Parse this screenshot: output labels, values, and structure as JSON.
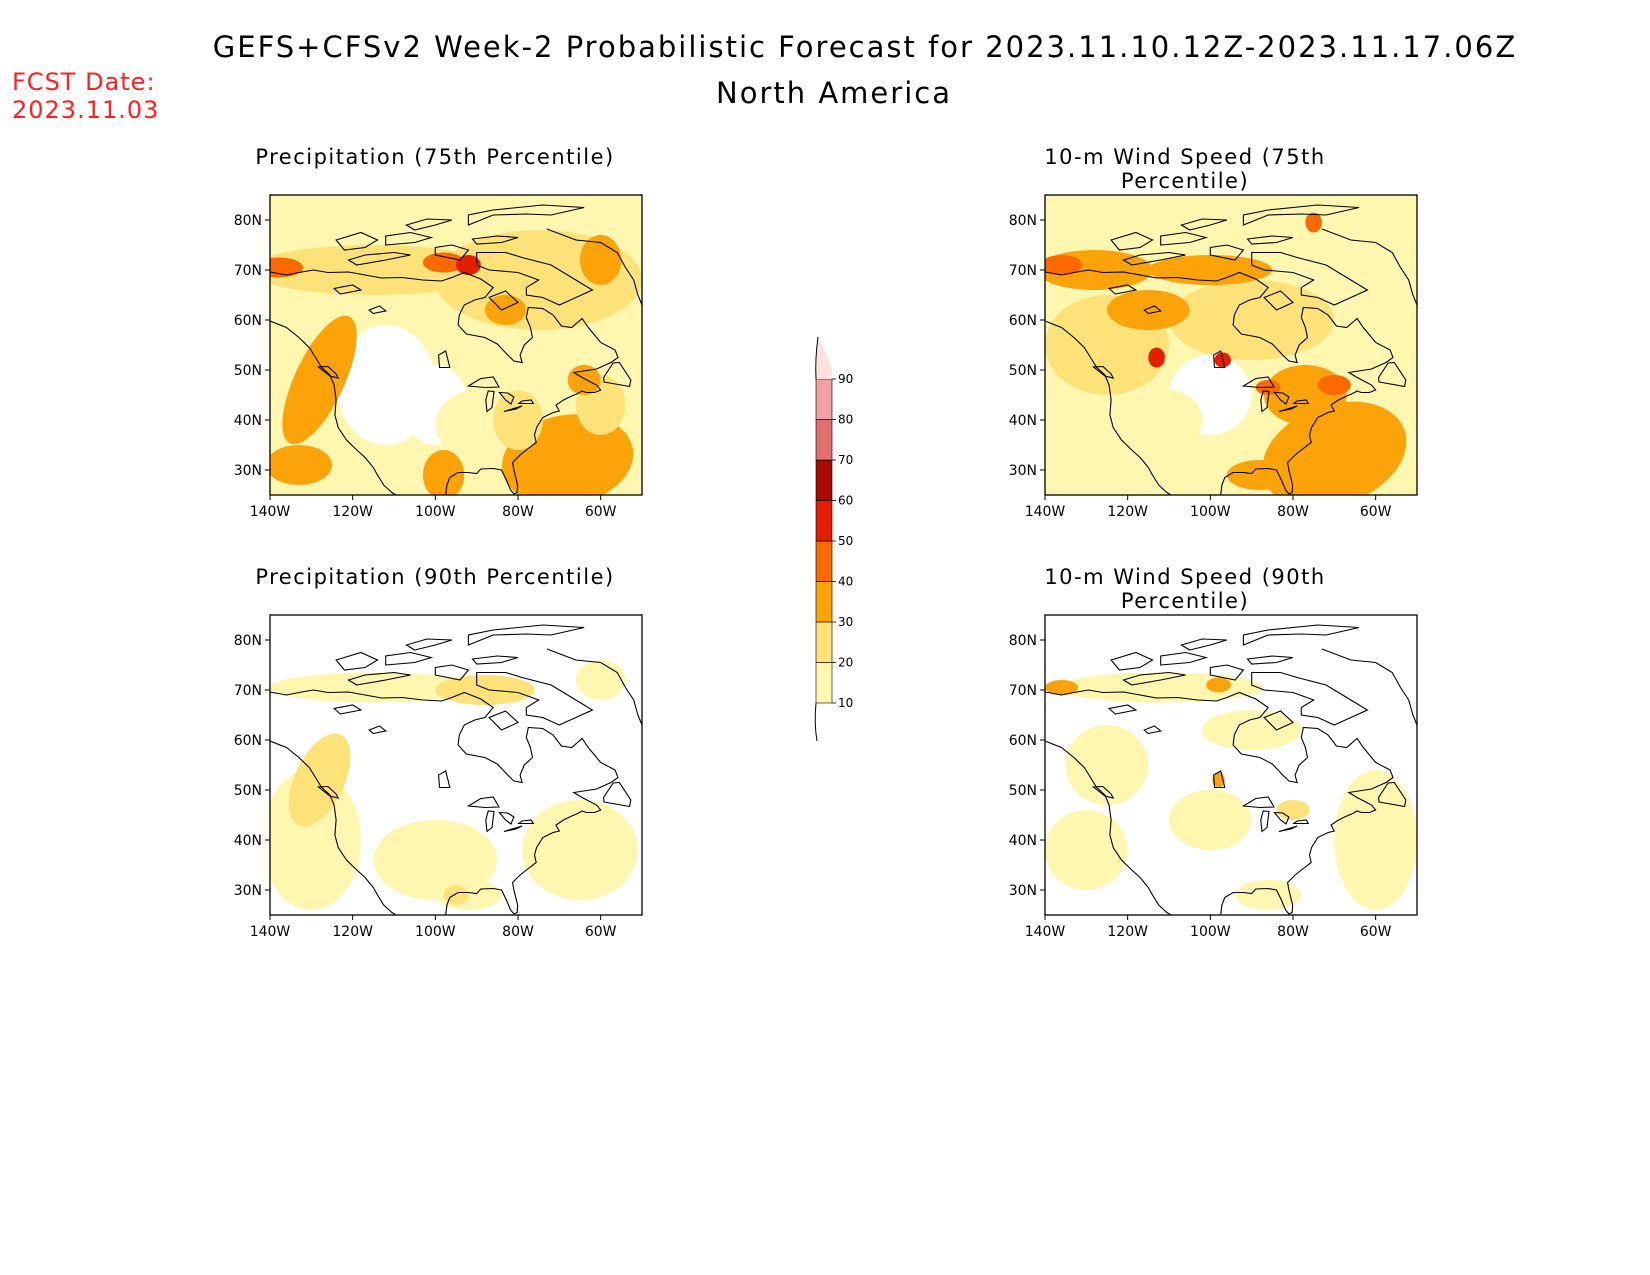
{
  "header": {
    "title": "GEFS+CFSv2 Week-2 Probabilistic Forecast for 2023.11.10.12Z-2023.11.17.06Z",
    "subtitle": "North America",
    "fcst_date_label": "FCST Date:",
    "fcst_date_value": "2023.11.03",
    "fcst_color": "#ff2020"
  },
  "axes": {
    "lon_ticks": [
      "140W",
      "120W",
      "100W",
      "80W",
      "60W"
    ],
    "lat_ticks": [
      "80N",
      "70N",
      "60N",
      "50N",
      "40N",
      "30N"
    ],
    "lon_range": [
      -140,
      -50
    ],
    "lat_range": [
      25,
      85
    ]
  },
  "panels": [
    {
      "id": "precip75",
      "title": "Precipitation (75th Percentile)",
      "intensity": 0.75
    },
    {
      "id": "wind75",
      "title": "10-m Wind Speed (75th Percentile)",
      "intensity": 0.85
    },
    {
      "id": "precip90",
      "title": "Precipitation (90th Percentile)",
      "intensity": 0.3
    },
    {
      "id": "wind90",
      "title": "10-m Wind Speed (90th Percentile)",
      "intensity": 0.35
    }
  ],
  "colorbar": {
    "levels": [
      "10",
      "20",
      "30",
      "40",
      "50",
      "60",
      "70",
      "80",
      "90"
    ],
    "colors": [
      "#fff7b0",
      "#fde27a",
      "#fca30a",
      "#fb6a00",
      "#e41e00",
      "#a80a00",
      "#e07070",
      "#f2a0a0",
      "#ffe0e0"
    ]
  },
  "map_colors": {
    "white": "#ffffff",
    "yellow1": "#fff7b0",
    "yellow2": "#fde27a",
    "orange1": "#fca30a",
    "orange2": "#fb6a00",
    "red1": "#e41e00",
    "coast": "#000000"
  }
}
